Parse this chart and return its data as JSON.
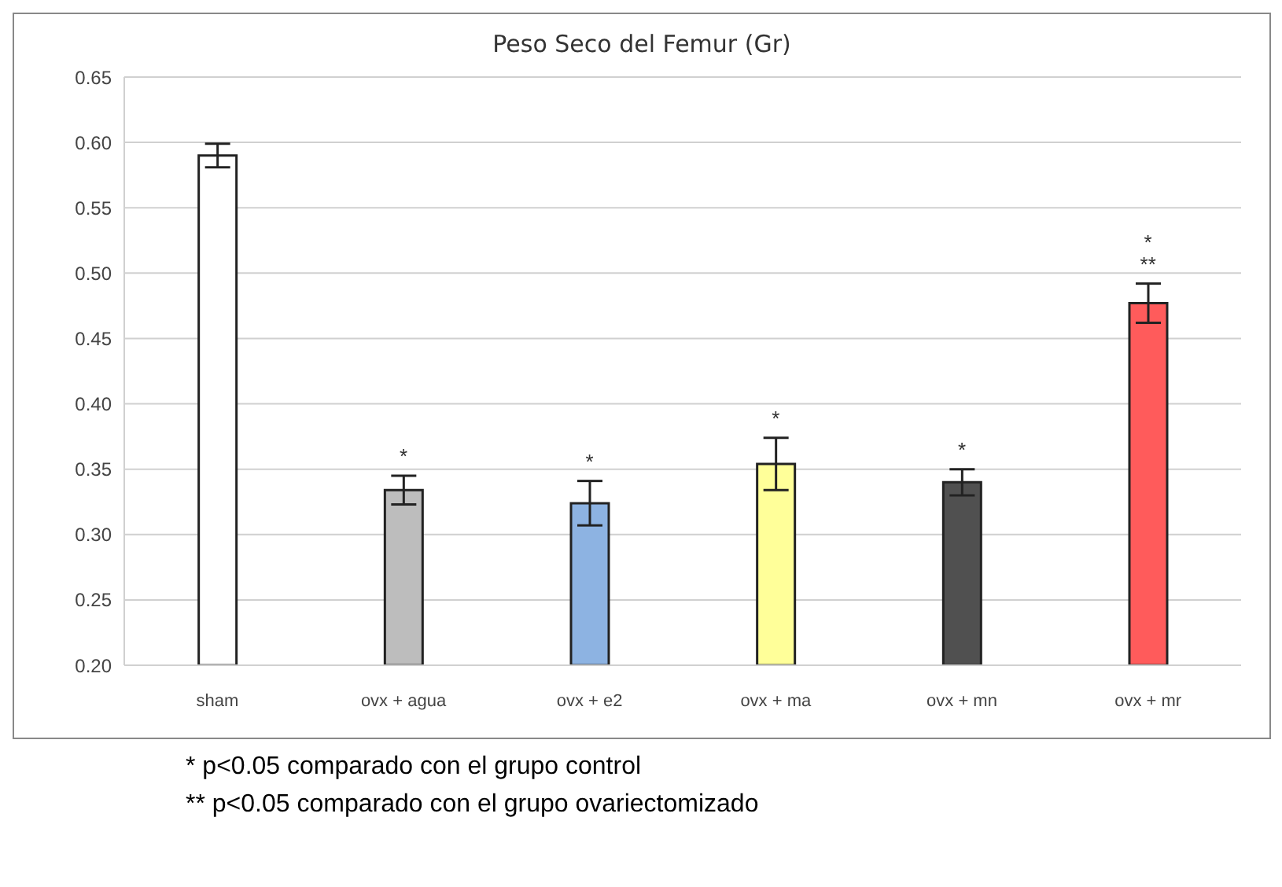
{
  "chart_data": {
    "type": "bar",
    "title": "Peso Seco del Femur (Gr)",
    "categories": [
      "sham",
      "ovx + agua",
      "ovx + e2",
      "ovx + ma",
      "ovx + mn",
      "ovx + mr"
    ],
    "values": [
      0.59,
      0.334,
      0.324,
      0.354,
      0.34,
      0.477
    ],
    "value_labels": [
      null,
      "*",
      "*",
      "*",
      "*",
      "*\n**"
    ],
    "errors": [
      0.009,
      0.011,
      0.017,
      0.02,
      0.01,
      0.015
    ],
    "colors": [
      "#ffffff",
      "#bdbdbd",
      "#8db3e2",
      "#ffff99",
      "#505050",
      "#ff5b5b"
    ],
    "ylim": [
      0.2,
      0.65
    ],
    "yticks": [
      {
        "value": 0.2,
        "label": "0.20"
      },
      {
        "value": 0.25,
        "label": "0.25"
      },
      {
        "value": 0.3,
        "label": "0.30"
      },
      {
        "value": 0.35,
        "label": "0.35"
      },
      {
        "value": 0.4,
        "label": "0.40"
      },
      {
        "value": 0.45,
        "label": "0.45"
      },
      {
        "value": 0.5,
        "label": "0.50"
      },
      {
        "value": 0.55,
        "label": "0.55"
      },
      {
        "value": 0.6,
        "label": "0.60"
      },
      {
        "value": 0.65,
        "label": "0.65"
      }
    ],
    "grid": "y",
    "annotations": [
      "* p<0.05 comparado con el grupo control",
      "** p<0.05 comparado con el grupo ovariectomizado"
    ]
  }
}
